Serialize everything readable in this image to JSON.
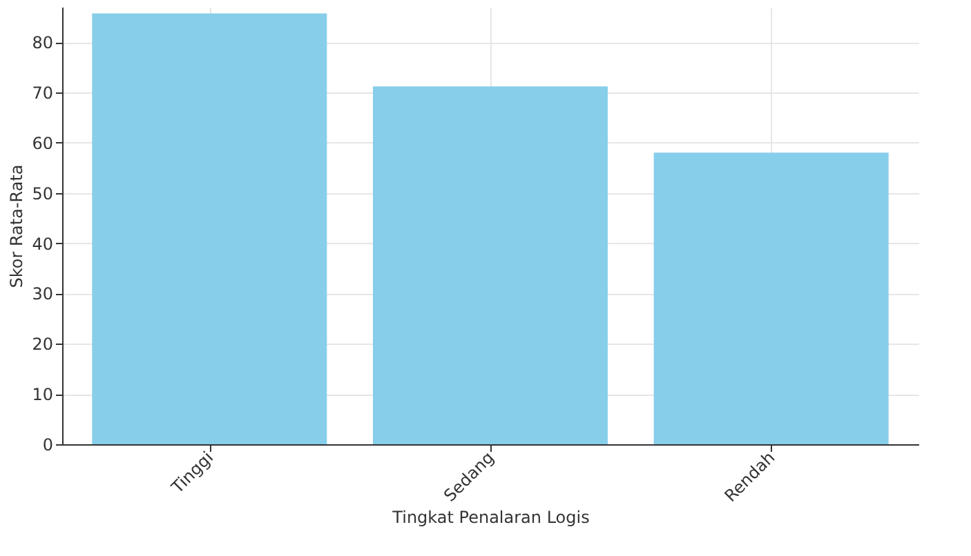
{
  "chart_data": {
    "type": "bar",
    "xlabel": "Tingkat Penalaran Logis",
    "ylabel": "Skor Rata-Rata",
    "categories": [
      "Tinggi",
      "Sedang",
      "Rendah"
    ],
    "values": [
      85.7,
      71.2,
      58.0
    ],
    "color": "#87ceeb",
    "ylim": [
      0,
      87
    ],
    "yticks": [
      0,
      10,
      20,
      30,
      40,
      50,
      60,
      70,
      80
    ],
    "grid": true
  }
}
